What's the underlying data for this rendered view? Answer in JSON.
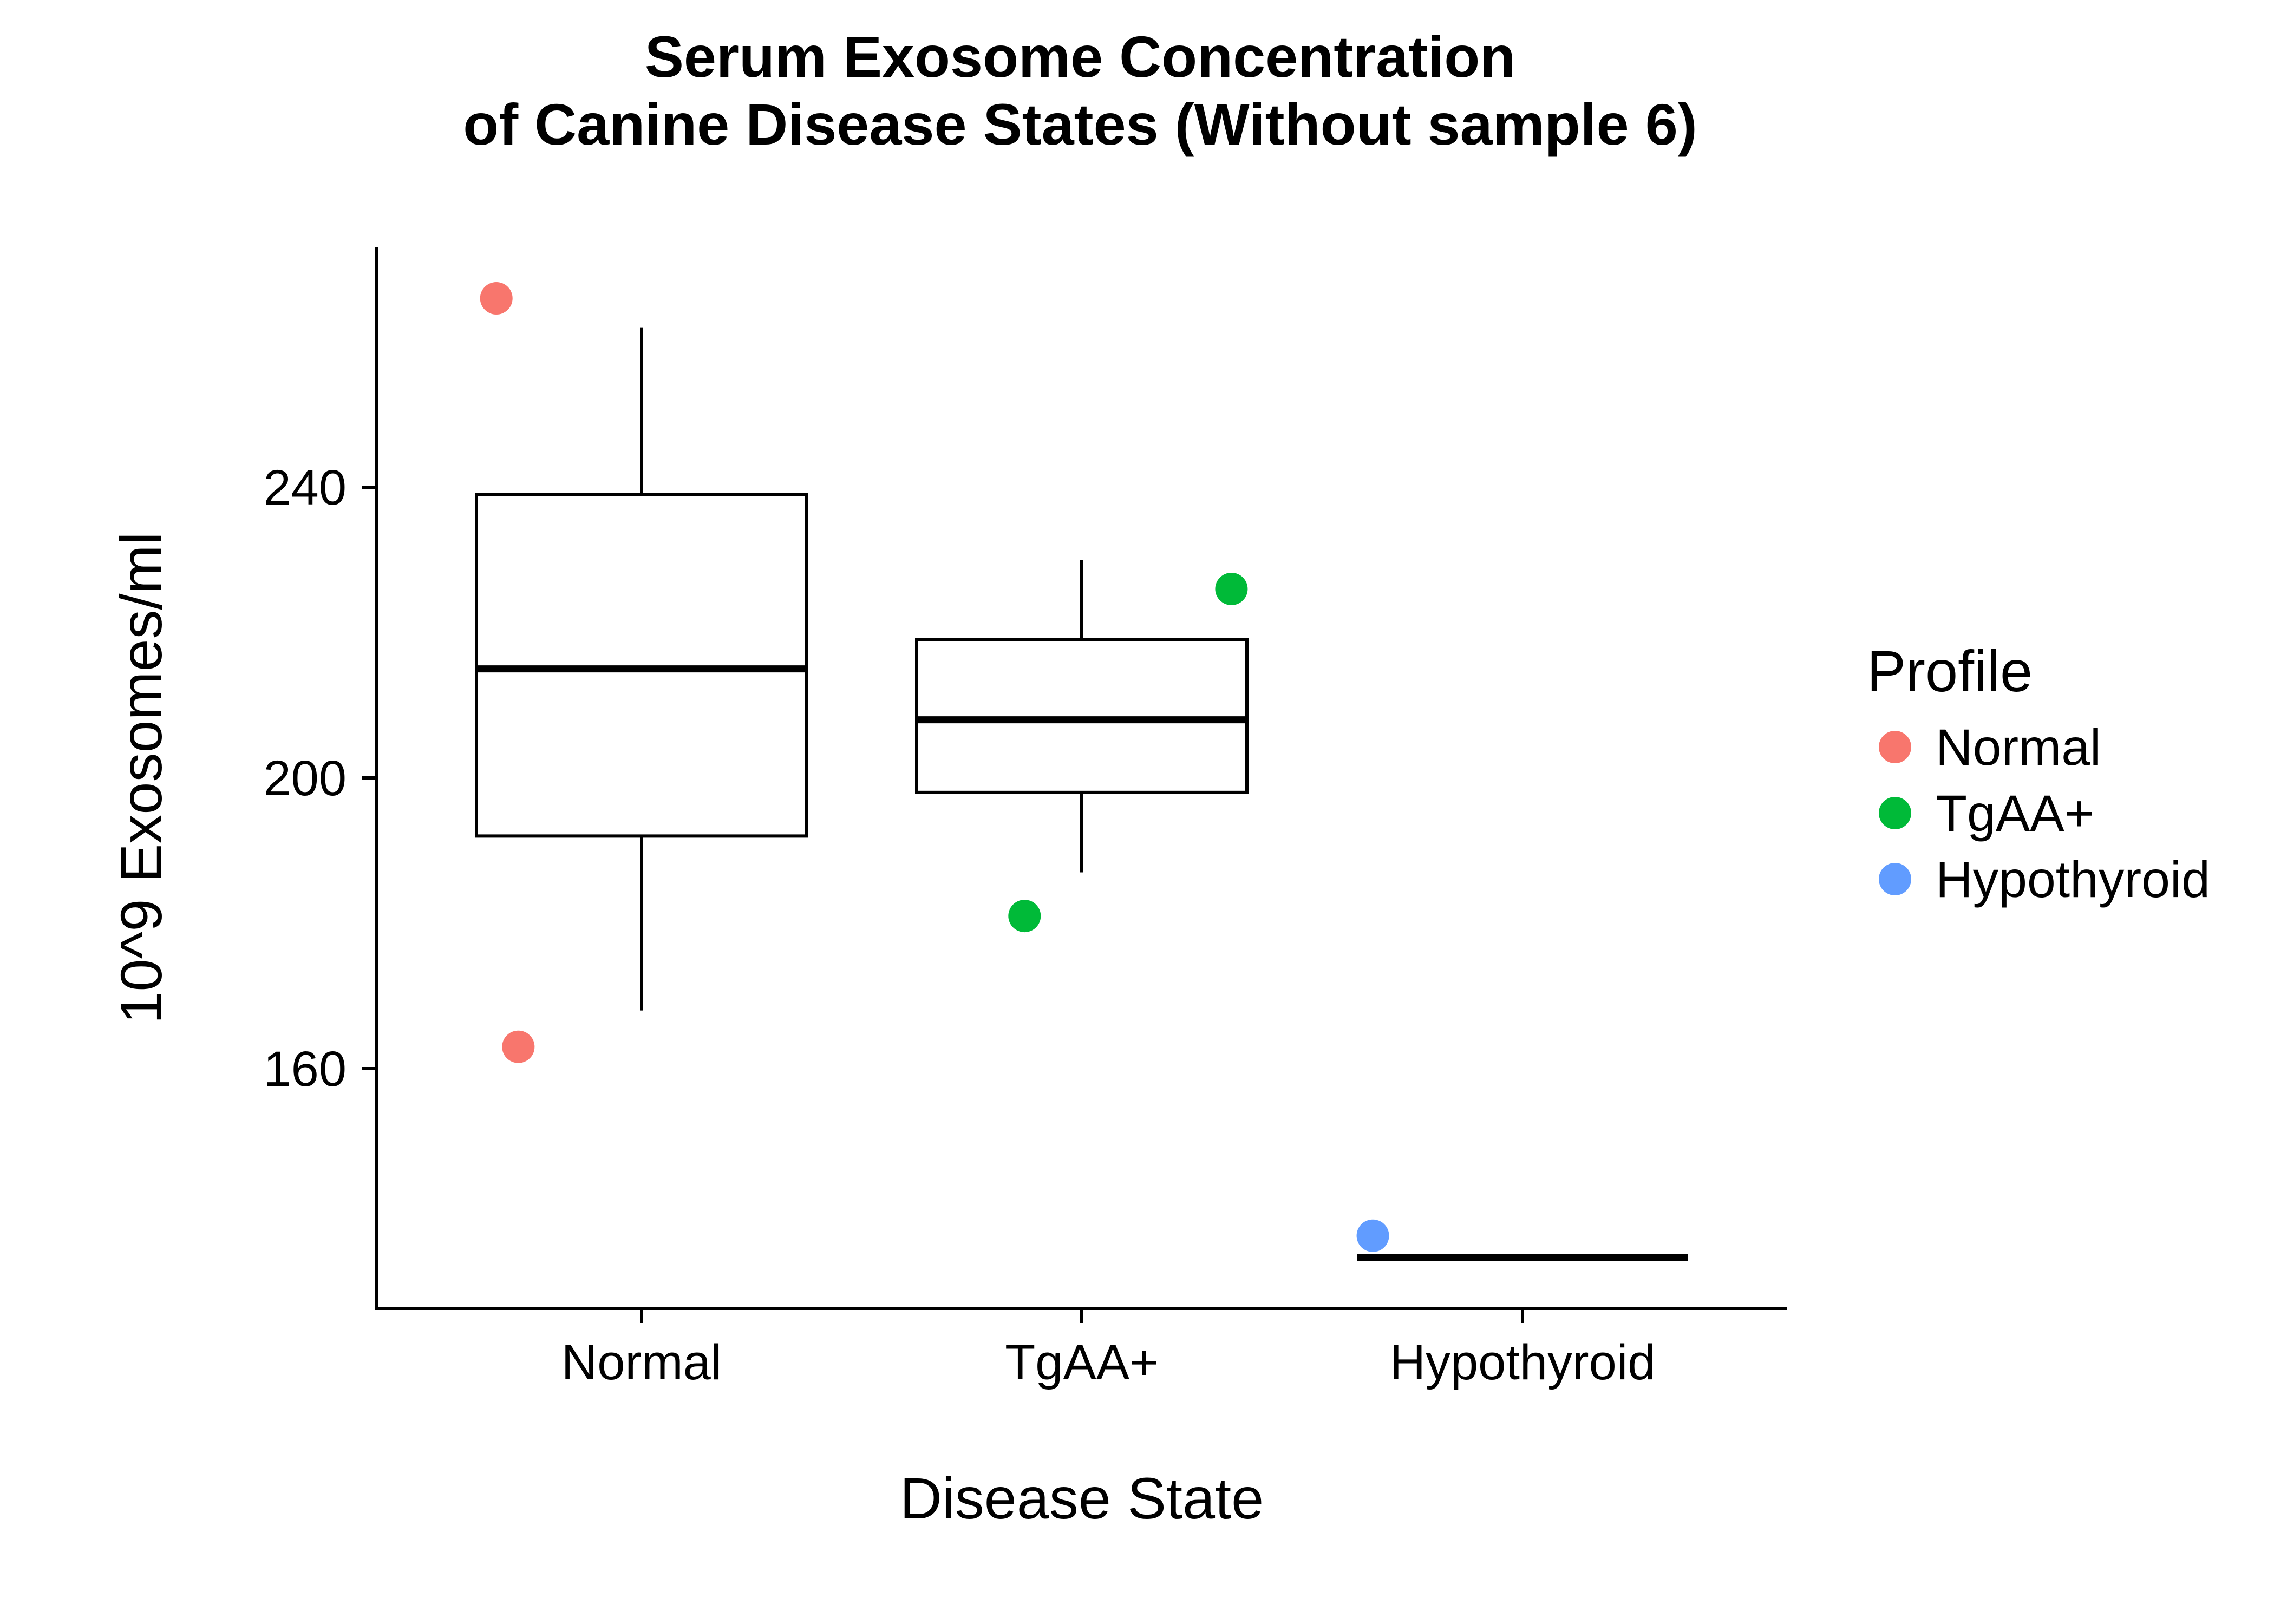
{
  "chart_data": {
    "type": "box",
    "title": "Serum Exosome Concentration\nof Canine Disease States (Without sample 6)",
    "title_lines": [
      "Serum Exosome Concentration",
      "of Canine Disease States (Without sample 6)"
    ],
    "xlabel": "Disease State",
    "ylabel": "10^9 Exosomes/ml",
    "categories": [
      "Normal",
      "TgAA+",
      "Hypothyroid"
    ],
    "ylim": [
      127,
      273
    ],
    "yticks": [
      160,
      200,
      240
    ],
    "grid": false,
    "legend_position": "right",
    "legend_title": "Profile",
    "series": [
      {
        "name": "Normal",
        "color": "#F8766D"
      },
      {
        "name": "TgAA+",
        "color": "#00BA38"
      },
      {
        "name": "Hypothyroid",
        "color": "#619CFF"
      }
    ],
    "boxes": [
      {
        "category": "Normal",
        "lower_whisker": 168,
        "q1": 192,
        "median": 215,
        "q3": 239,
        "upper_whisker": 262
      },
      {
        "category": "TgAA+",
        "lower_whisker": 187,
        "q1": 198,
        "median": 208,
        "q3": 219,
        "upper_whisker": 230
      },
      {
        "category": "Hypothyroid",
        "lower_whisker": 134,
        "q1": 134,
        "median": 134,
        "q3": 134,
        "upper_whisker": 134
      }
    ],
    "points": [
      {
        "category": "Normal",
        "profile": "Normal",
        "y": 266,
        "jitter": -0.33
      },
      {
        "category": "Normal",
        "profile": "Normal",
        "y": 163,
        "jitter": -0.28
      },
      {
        "category": "TgAA+",
        "profile": "TgAA+",
        "y": 181,
        "jitter": -0.13
      },
      {
        "category": "TgAA+",
        "profile": "TgAA+",
        "y": 226,
        "jitter": 0.34
      },
      {
        "category": "Hypothyroid",
        "profile": "Hypothyroid",
        "y": 137,
        "jitter": -0.34
      }
    ]
  }
}
